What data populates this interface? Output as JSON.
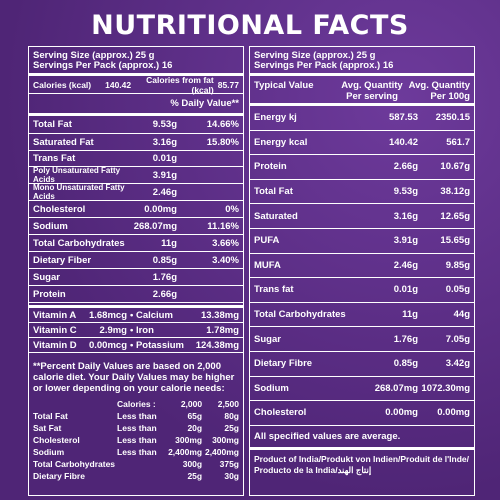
{
  "title": "NUTRITIONAL FACTS",
  "left": {
    "serving_size": "Serving Size (approx.) 25 g",
    "servings_per_pack": "Servings Per Pack (approx.) 16",
    "calories": "Calories (kcal)",
    "calories_value": "140.42",
    "calories_fat": "Calories from fat (kcal)",
    "calories_fat_value": "85.77",
    "dv_header": "% Daily Value**",
    "rows": [
      {
        "label": "Total Fat",
        "amount": "9.53g",
        "dv": "14.66%"
      },
      {
        "label": "Saturated Fat",
        "amount": "3.16g",
        "dv": "15.80%"
      },
      {
        "label": "Trans Fat",
        "amount": "0.01g",
        "dv": ""
      },
      {
        "label": "Poly Unsaturated Fatty Acids",
        "amount": "3.91g",
        "dv": ""
      },
      {
        "label": "Mono Unsaturated Fatty Acids",
        "amount": "2.46g",
        "dv": ""
      },
      {
        "label": "Cholesterol",
        "amount": "0.00mg",
        "dv": "0%"
      },
      {
        "label": "Sodium",
        "amount": "268.07mg",
        "dv": "11.16%"
      },
      {
        "label": "Total Carbohydrates",
        "amount": "11g",
        "dv": "3.66%"
      },
      {
        "label": "Dietary Fiber",
        "amount": "0.85g",
        "dv": "3.40%"
      },
      {
        "label": "Sugar",
        "amount": "1.76g",
        "dv": ""
      },
      {
        "label": "Protein",
        "amount": "2.66g",
        "dv": ""
      }
    ],
    "vitamins": [
      {
        "a_label": "Vitamin A",
        "a_val": "1.68mcg",
        "b_label": "• Calcium",
        "b_val": "13.38mg"
      },
      {
        "a_label": "Vitamin C",
        "a_val": "2.9mg",
        "b_label": "• Iron",
        "b_val": "1.78mg"
      },
      {
        "a_label": "Vitamin D",
        "a_val": "0.00mcg",
        "b_label": "• Potassium",
        "b_val": "124.38mg"
      }
    ],
    "footnote": "**Percent Daily Values are based on 2,000 calorie diet. Your Daily Values may be higher or lower depending on your calorie needs:",
    "ref_header": {
      "label": "Calories :",
      "a": "2,000",
      "b": "2,500"
    },
    "ref_rows": [
      {
        "label": "Total Fat",
        "cond": "Less than",
        "a": "65g",
        "b": "80g"
      },
      {
        "label": "Sat Fat",
        "cond": "Less than",
        "a": "20g",
        "b": "25g"
      },
      {
        "label": "Cholesterol",
        "cond": "Less than",
        "a": "300mg",
        "b": "300mg"
      },
      {
        "label": "Sodium",
        "cond": "Less than",
        "a": "2,400mg",
        "b": "2,400mg"
      },
      {
        "label": "Total Carbohydrates",
        "cond": "",
        "a": "300g",
        "b": "375g"
      },
      {
        "label": "Dietary Fibre",
        "cond": "",
        "a": "25g",
        "b": "30g"
      }
    ]
  },
  "right": {
    "serving_size": "Serving Size (approx.) 25 g",
    "servings_per_pack": "Servings Per Pack (approx.) 16",
    "col_typical": "Typical Value",
    "col_serving": "Avg. Quantity Per serving",
    "col_100g": "Avg. Quantity Per 100g",
    "rows": [
      {
        "label": "Energy kj",
        "serving": "587.53",
        "per100": "2350.15"
      },
      {
        "label": "Energy kcal",
        "serving": "140.42",
        "per100": "561.7"
      },
      {
        "label": "Protein",
        "serving": "2.66g",
        "per100": "10.67g"
      },
      {
        "label": "Total Fat",
        "serving": "9.53g",
        "per100": "38.12g"
      },
      {
        "label": "Saturated",
        "serving": "3.16g",
        "per100": "12.65g"
      },
      {
        "label": "PUFA",
        "serving": "3.91g",
        "per100": "15.65g"
      },
      {
        "label": "MUFA",
        "serving": "2.46g",
        "per100": "9.85g"
      },
      {
        "label": "Trans fat",
        "serving": "0.01g",
        "per100": "0.05g"
      },
      {
        "label": "Total Carbohydrates",
        "serving": "11g",
        "per100": "44g"
      },
      {
        "label": "Sugar",
        "serving": "1.76g",
        "per100": "7.05g"
      },
      {
        "label": "Dietary Fibre",
        "serving": "0.85g",
        "per100": "3.42g"
      },
      {
        "label": "Sodium",
        "serving": "268.07mg",
        "per100": "1072.30mg"
      },
      {
        "label": "Cholesterol",
        "serving": "0.00mg",
        "per100": "0.00mg"
      }
    ],
    "note": "All specified values are average.",
    "origin": "Product of India/Produkt von Indien/Produit de l'Inde/ Producto de la India/إنتاج الهند"
  }
}
